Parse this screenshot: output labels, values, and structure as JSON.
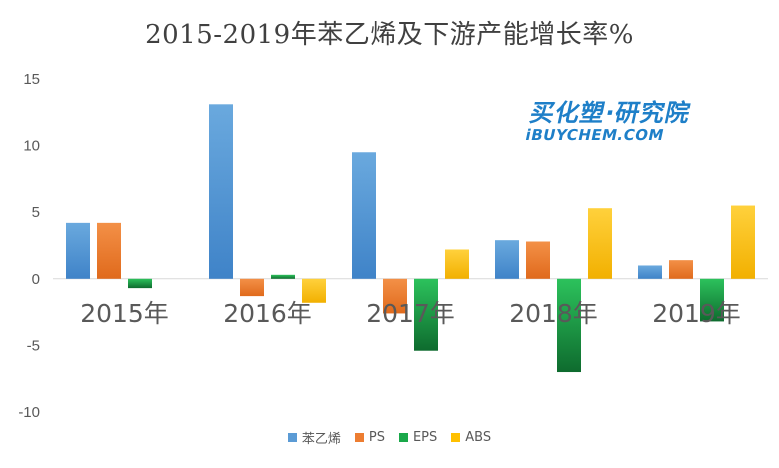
{
  "chart_data": {
    "type": "bar",
    "title": "2015-2019年苯乙烯及下游产能增长率%",
    "categories": [
      "2015年",
      "2016年",
      "2017年",
      "2018年",
      "2019年"
    ],
    "series": [
      {
        "name": "苯乙烯",
        "values": [
          4.2,
          13.1,
          9.5,
          2.9,
          1.0
        ],
        "color": "#5b9bd5"
      },
      {
        "name": "PS",
        "values": [
          4.2,
          -1.3,
          -2.6,
          2.8,
          1.4
        ],
        "color": "#ed7d31"
      },
      {
        "name": "EPS",
        "values": [
          -0.7,
          0.3,
          -5.4,
          -7.0,
          -3.2
        ],
        "color": "#1aa84a"
      },
      {
        "name": "ABS",
        "values": [
          0.0,
          -1.8,
          2.2,
          5.3,
          5.5
        ],
        "color": "#ffc000"
      }
    ],
    "ylim": [
      -10,
      15
    ],
    "yticks": [
      15,
      10,
      5,
      0,
      -5,
      -10
    ],
    "grid": false,
    "legend": "bottom"
  },
  "watermark": {
    "line1": "买化塑·研究院",
    "line2": "iBUYCHEM.COM"
  }
}
